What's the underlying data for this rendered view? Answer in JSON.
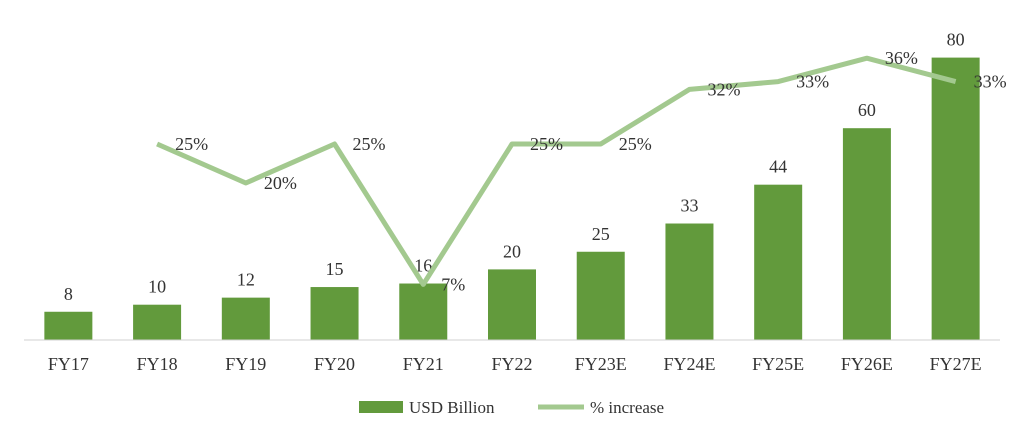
{
  "chart_data": {
    "type": "bar",
    "categories": [
      "FY17",
      "FY18",
      "FY19",
      "FY20",
      "FY21",
      "FY22",
      "FY23E",
      "FY24E",
      "FY25E",
      "FY26E",
      "FY27E"
    ],
    "series": [
      {
        "name": "USD Billion",
        "type": "bar",
        "values": [
          8,
          10,
          12,
          15,
          16,
          20,
          25,
          33,
          44,
          60,
          80
        ],
        "color": "#629a3c"
      },
      {
        "name": "% increase",
        "type": "line",
        "axis": "secondary",
        "values": [
          null,
          25,
          20,
          25,
          7,
          25,
          25,
          32,
          33,
          36,
          33
        ],
        "labels": [
          "",
          "25%",
          "20%",
          "25%",
          "7%",
          "25%",
          "25%",
          "32%",
          "33%",
          "36%",
          "33%"
        ],
        "color": "#a3c98f"
      }
    ],
    "value_labels": [
      "8",
      "10",
      "12",
      "15",
      "16",
      "20",
      "25",
      "33",
      "44",
      "60",
      "80"
    ],
    "title": "",
    "xlabel": "",
    "ylabel": "",
    "ylim": [
      0,
      85
    ],
    "ylim_secondary": [
      0,
      40
    ],
    "grid": false,
    "legend_position": "bottom"
  }
}
